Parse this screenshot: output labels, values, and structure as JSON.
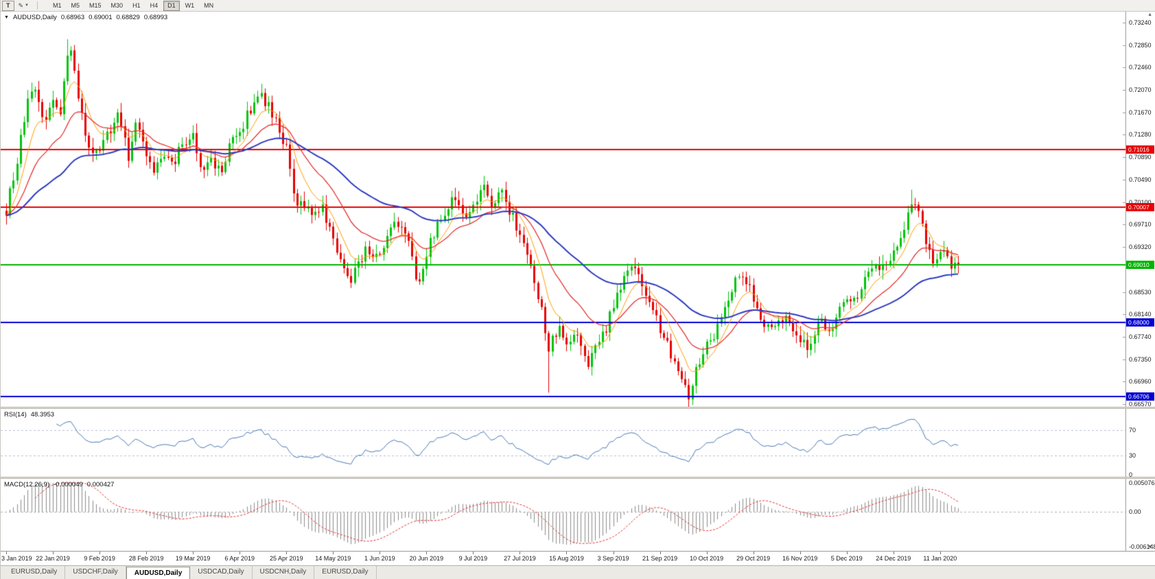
{
  "toolbar": {
    "tool_button": "T",
    "timeframes": [
      "M1",
      "M5",
      "M15",
      "M30",
      "H1",
      "H4",
      "D1",
      "W1",
      "MN"
    ],
    "active_timeframe": "D1"
  },
  "chart": {
    "symbol_label": "AUDUSD,Daily",
    "ohlc": {
      "open": "0.68963",
      "high": "0.69001",
      "low": "0.68829",
      "close": "0.68993"
    }
  },
  "colors": {
    "background": "#ffffff",
    "up_candle": "#00c40a",
    "down_candle": "#e60000",
    "ma_fast": "#ff9e00",
    "ma_med": "#e63232",
    "ma_slow": "#2e3bbf",
    "rsi_line": "#4779b8",
    "rsi_level": "#b8c0d6",
    "macd_histogram": "#8c8c8c",
    "macd_signal": "#e63232",
    "axis_border": "#9a9a9a"
  },
  "chart_data": {
    "type": "candlestick",
    "symbol": "AUDUSD",
    "timeframe": "Daily",
    "title": "AUDUSD,Daily 0.68963 0.69001 0.68829 0.68993",
    "num_candles": 266,
    "final_close": 0.68993,
    "y_axis_max": 0.7324,
    "y_axis_min": 0.6657,
    "y_ticks": [
      "0.73240",
      "0.72850",
      "0.72460",
      "0.72070",
      "0.71670",
      "0.71280",
      "0.70890",
      "0.70490",
      "0.70100",
      "0.69710",
      "0.69320",
      "0.68530",
      "0.68140",
      "0.67740",
      "0.67350",
      "0.66960",
      "0.66570"
    ],
    "x_ticks": [
      "3 Jan 2019",
      "22 Jan 2019",
      "9 Feb 2019",
      "28 Feb 2019",
      "19 Mar 2019",
      "6 Apr 2019",
      "25 Apr 2019",
      "14 May 2019",
      "1 Jun 2019",
      "20 Jun 2019",
      "9 Jul 2019",
      "27 Jul 2019",
      "15 Aug 2019",
      "3 Sep 2019",
      "21 Sep 2019",
      "10 Oct 2019",
      "29 Oct 2019",
      "16 Nov 2019",
      "5 Dec 2019",
      "24 Dec 2019",
      "11 Jan 2020"
    ],
    "hlines": [
      {
        "price": 0.71016,
        "label": "0.71016",
        "color": "#e60000"
      },
      {
        "price": 0.70007,
        "label": "0.70007",
        "color": "#e60000"
      },
      {
        "price": 0.6901,
        "label": "0.69010",
        "color": "#00b400"
      },
      {
        "price": 0.68,
        "label": "0.68000",
        "color": "#0000d2"
      },
      {
        "price": 0.66706,
        "label": "0.66706",
        "color": "#0000d2"
      }
    ],
    "price_path": [
      [
        0.0,
        0.6995
      ],
      [
        0.012,
        0.709
      ],
      [
        0.022,
        0.718
      ],
      [
        0.03,
        0.7205
      ],
      [
        0.04,
        0.715
      ],
      [
        0.048,
        0.719
      ],
      [
        0.056,
        0.716
      ],
      [
        0.066,
        0.729
      ],
      [
        0.072,
        0.723
      ],
      [
        0.08,
        0.715
      ],
      [
        0.088,
        0.709
      ],
      [
        0.098,
        0.7105
      ],
      [
        0.108,
        0.713
      ],
      [
        0.118,
        0.7165
      ],
      [
        0.128,
        0.709
      ],
      [
        0.138,
        0.7155
      ],
      [
        0.147,
        0.71
      ],
      [
        0.155,
        0.706
      ],
      [
        0.165,
        0.7095
      ],
      [
        0.175,
        0.707
      ],
      [
        0.185,
        0.7115
      ],
      [
        0.196,
        0.713
      ],
      [
        0.205,
        0.707
      ],
      [
        0.215,
        0.7085
      ],
      [
        0.225,
        0.706
      ],
      [
        0.235,
        0.711
      ],
      [
        0.245,
        0.713
      ],
      [
        0.255,
        0.717
      ],
      [
        0.265,
        0.72
      ],
      [
        0.275,
        0.718
      ],
      [
        0.285,
        0.714
      ],
      [
        0.294,
        0.7105
      ],
      [
        0.302,
        0.7015
      ],
      [
        0.312,
        0.7005
      ],
      [
        0.322,
        0.6995
      ],
      [
        0.332,
        0.7
      ],
      [
        0.343,
        0.6945
      ],
      [
        0.352,
        0.69
      ],
      [
        0.36,
        0.687
      ],
      [
        0.37,
        0.6905
      ],
      [
        0.38,
        0.693
      ],
      [
        0.392,
        0.691
      ],
      [
        0.402,
        0.696
      ],
      [
        0.412,
        0.6975
      ],
      [
        0.422,
        0.694
      ],
      [
        0.432,
        0.6865
      ],
      [
        0.442,
        0.6925
      ],
      [
        0.452,
        0.6965
      ],
      [
        0.462,
        0.6995
      ],
      [
        0.472,
        0.702
      ],
      [
        0.482,
        0.6985
      ],
      [
        0.491,
        0.7005
      ],
      [
        0.5,
        0.704
      ],
      [
        0.51,
        0.7
      ],
      [
        0.52,
        0.7025
      ],
      [
        0.53,
        0.699
      ],
      [
        0.54,
        0.6955
      ],
      [
        0.55,
        0.69
      ],
      [
        0.56,
        0.6835
      ],
      [
        0.57,
        0.6755
      ],
      [
        0.58,
        0.679
      ],
      [
        0.589,
        0.6755
      ],
      [
        0.6,
        0.678
      ],
      [
        0.61,
        0.6725
      ],
      [
        0.62,
        0.676
      ],
      [
        0.63,
        0.679
      ],
      [
        0.638,
        0.6835
      ],
      [
        0.65,
        0.688
      ],
      [
        0.66,
        0.6895
      ],
      [
        0.67,
        0.686
      ],
      [
        0.68,
        0.682
      ],
      [
        0.687,
        0.679
      ],
      [
        0.697,
        0.675
      ],
      [
        0.707,
        0.672
      ],
      [
        0.717,
        0.6675
      ],
      [
        0.727,
        0.673
      ],
      [
        0.736,
        0.676
      ],
      [
        0.746,
        0.6785
      ],
      [
        0.756,
        0.6835
      ],
      [
        0.766,
        0.6875
      ],
      [
        0.776,
        0.688
      ],
      [
        0.786,
        0.684
      ],
      [
        0.796,
        0.68
      ],
      [
        0.806,
        0.6785
      ],
      [
        0.816,
        0.681
      ],
      [
        0.826,
        0.6795
      ],
      [
        0.834,
        0.677
      ],
      [
        0.842,
        0.6755
      ],
      [
        0.85,
        0.679
      ],
      [
        0.858,
        0.68
      ],
      [
        0.866,
        0.677
      ],
      [
        0.874,
        0.682
      ],
      [
        0.883,
        0.685
      ],
      [
        0.892,
        0.684
      ],
      [
        0.9,
        0.687
      ],
      [
        0.91,
        0.6905
      ],
      [
        0.92,
        0.69
      ],
      [
        0.932,
        0.6925
      ],
      [
        0.942,
        0.696
      ],
      [
        0.95,
        0.7005
      ],
      [
        0.958,
        0.699
      ],
      [
        0.966,
        0.6945
      ],
      [
        0.974,
        0.691
      ],
      [
        0.981,
        0.6925
      ],
      [
        0.99,
        0.6905
      ],
      [
        1.0,
        0.6899
      ]
    ],
    "spike_highs": [
      {
        "f": 0.066,
        "price": 0.7295
      },
      {
        "f": 0.95,
        "price": 0.7032
      }
    ],
    "spike_lows": [
      {
        "f": 0.57,
        "price": 0.6677
      },
      {
        "f": 0.717,
        "price": 0.667
      }
    ],
    "moving_averages": [
      {
        "name": "fast",
        "period": 8
      },
      {
        "name": "medium",
        "period": 20
      },
      {
        "name": "slow",
        "period": 55
      }
    ],
    "indicators": {
      "rsi": {
        "label": "RSI(14)",
        "value": "48.3953",
        "period": 14,
        "axis_marks": [
          {
            "label": "70",
            "value": 70
          },
          {
            "label": "30",
            "value": 30
          },
          {
            "label": "0",
            "value": 0
          }
        ]
      },
      "macd": {
        "label": "MACD(12,26,9)",
        "macd_value": "-0.000049",
        "signal_value": "0.000427",
        "fast": 12,
        "slow": 26,
        "signal": 9,
        "axis_marks": [
          {
            "label": "0.005076",
            "value": 0.005076
          },
          {
            "label": "0.00",
            "value": 0
          },
          {
            "label": "-0.006148",
            "value": -0.006148
          }
        ]
      }
    }
  },
  "tabs": [
    {
      "label": "EURUSD,Daily",
      "active": false
    },
    {
      "label": "USDCHF,Daily",
      "active": false
    },
    {
      "label": "AUDUSD,Daily",
      "active": true
    },
    {
      "label": "USDCAD,Daily",
      "active": false
    },
    {
      "label": "USDCNH,Daily",
      "active": false
    },
    {
      "label": "EURUSD,Daily",
      "active": false
    }
  ]
}
